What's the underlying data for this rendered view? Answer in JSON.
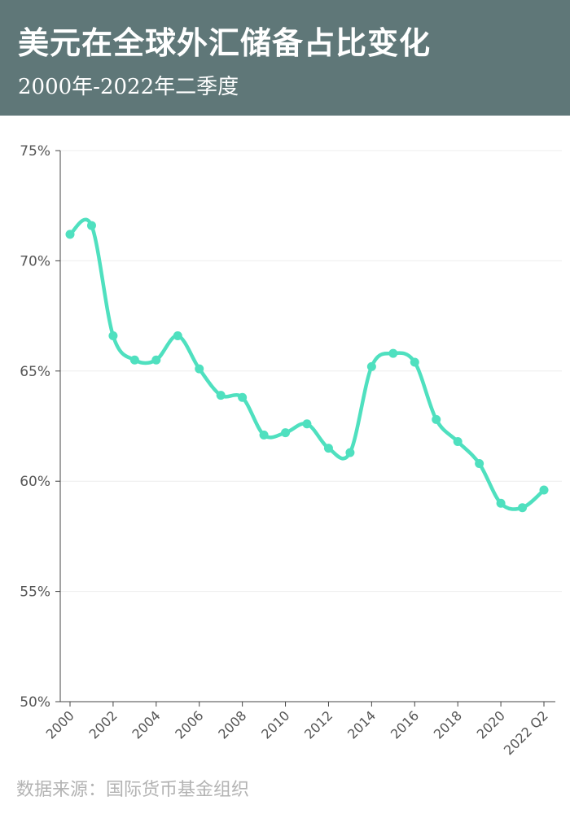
{
  "header": {
    "title": "美元在全球外汇储备占比变化",
    "subtitle": "2000年-2022年二季度"
  },
  "source": "数据来源：国际货币基金组织",
  "chart_data": {
    "type": "line",
    "title": "美元在全球外汇储备占比变化",
    "subtitle": "2000年-2022年二季度",
    "xlabel": "",
    "ylabel": "",
    "ylim": [
      50,
      75
    ],
    "yticks": [
      50,
      55,
      60,
      65,
      70,
      75
    ],
    "ytick_labels": [
      "50%",
      "55%",
      "60%",
      "65%",
      "70%",
      "75%"
    ],
    "x": [
      "2000",
      "2001",
      "2002",
      "2003",
      "2004",
      "2005",
      "2006",
      "2007",
      "2008",
      "2009",
      "2010",
      "2011",
      "2012",
      "2013",
      "2014",
      "2015",
      "2016",
      "2017",
      "2018",
      "2019",
      "2020",
      "2021",
      "2022 Q2"
    ],
    "xtick_labels": [
      "2000",
      "2002",
      "2004",
      "2006",
      "2008",
      "2010",
      "2012",
      "2014",
      "2016",
      "2018",
      "2020",
      "2022 Q2"
    ],
    "values": [
      71.2,
      71.6,
      66.6,
      65.5,
      65.5,
      66.6,
      65.1,
      63.9,
      63.8,
      62.1,
      62.2,
      62.6,
      61.5,
      61.3,
      65.2,
      65.8,
      65.4,
      62.8,
      61.8,
      60.8,
      59.0,
      58.8,
      59.6
    ],
    "line_color": "#4fe0bf",
    "grid": true,
    "legend": "none"
  }
}
